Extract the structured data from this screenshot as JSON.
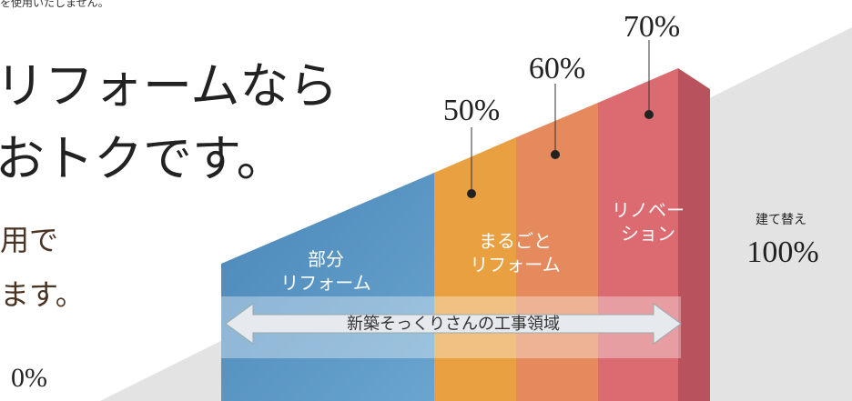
{
  "notice": "を使用いたしません。",
  "headline": {
    "lines": [
      "リフォームなら",
      "おトクです。"
    ]
  },
  "subtext": {
    "lines": [
      "用で",
      "ます。"
    ]
  },
  "start_label": "0%",
  "markers": [
    "50%",
    "60%",
    "70%"
  ],
  "blocks": [
    {
      "lines": [
        "部分",
        "リフォーム"
      ]
    },
    {
      "lines": [
        "まるごと",
        "リフォーム"
      ]
    },
    {
      "lines": [
        "リノベー",
        "ション"
      ]
    }
  ],
  "rebuild": {
    "label": "建て替え",
    "value": "100%"
  },
  "banner": "新築そっくりさんの工事領域"
}
